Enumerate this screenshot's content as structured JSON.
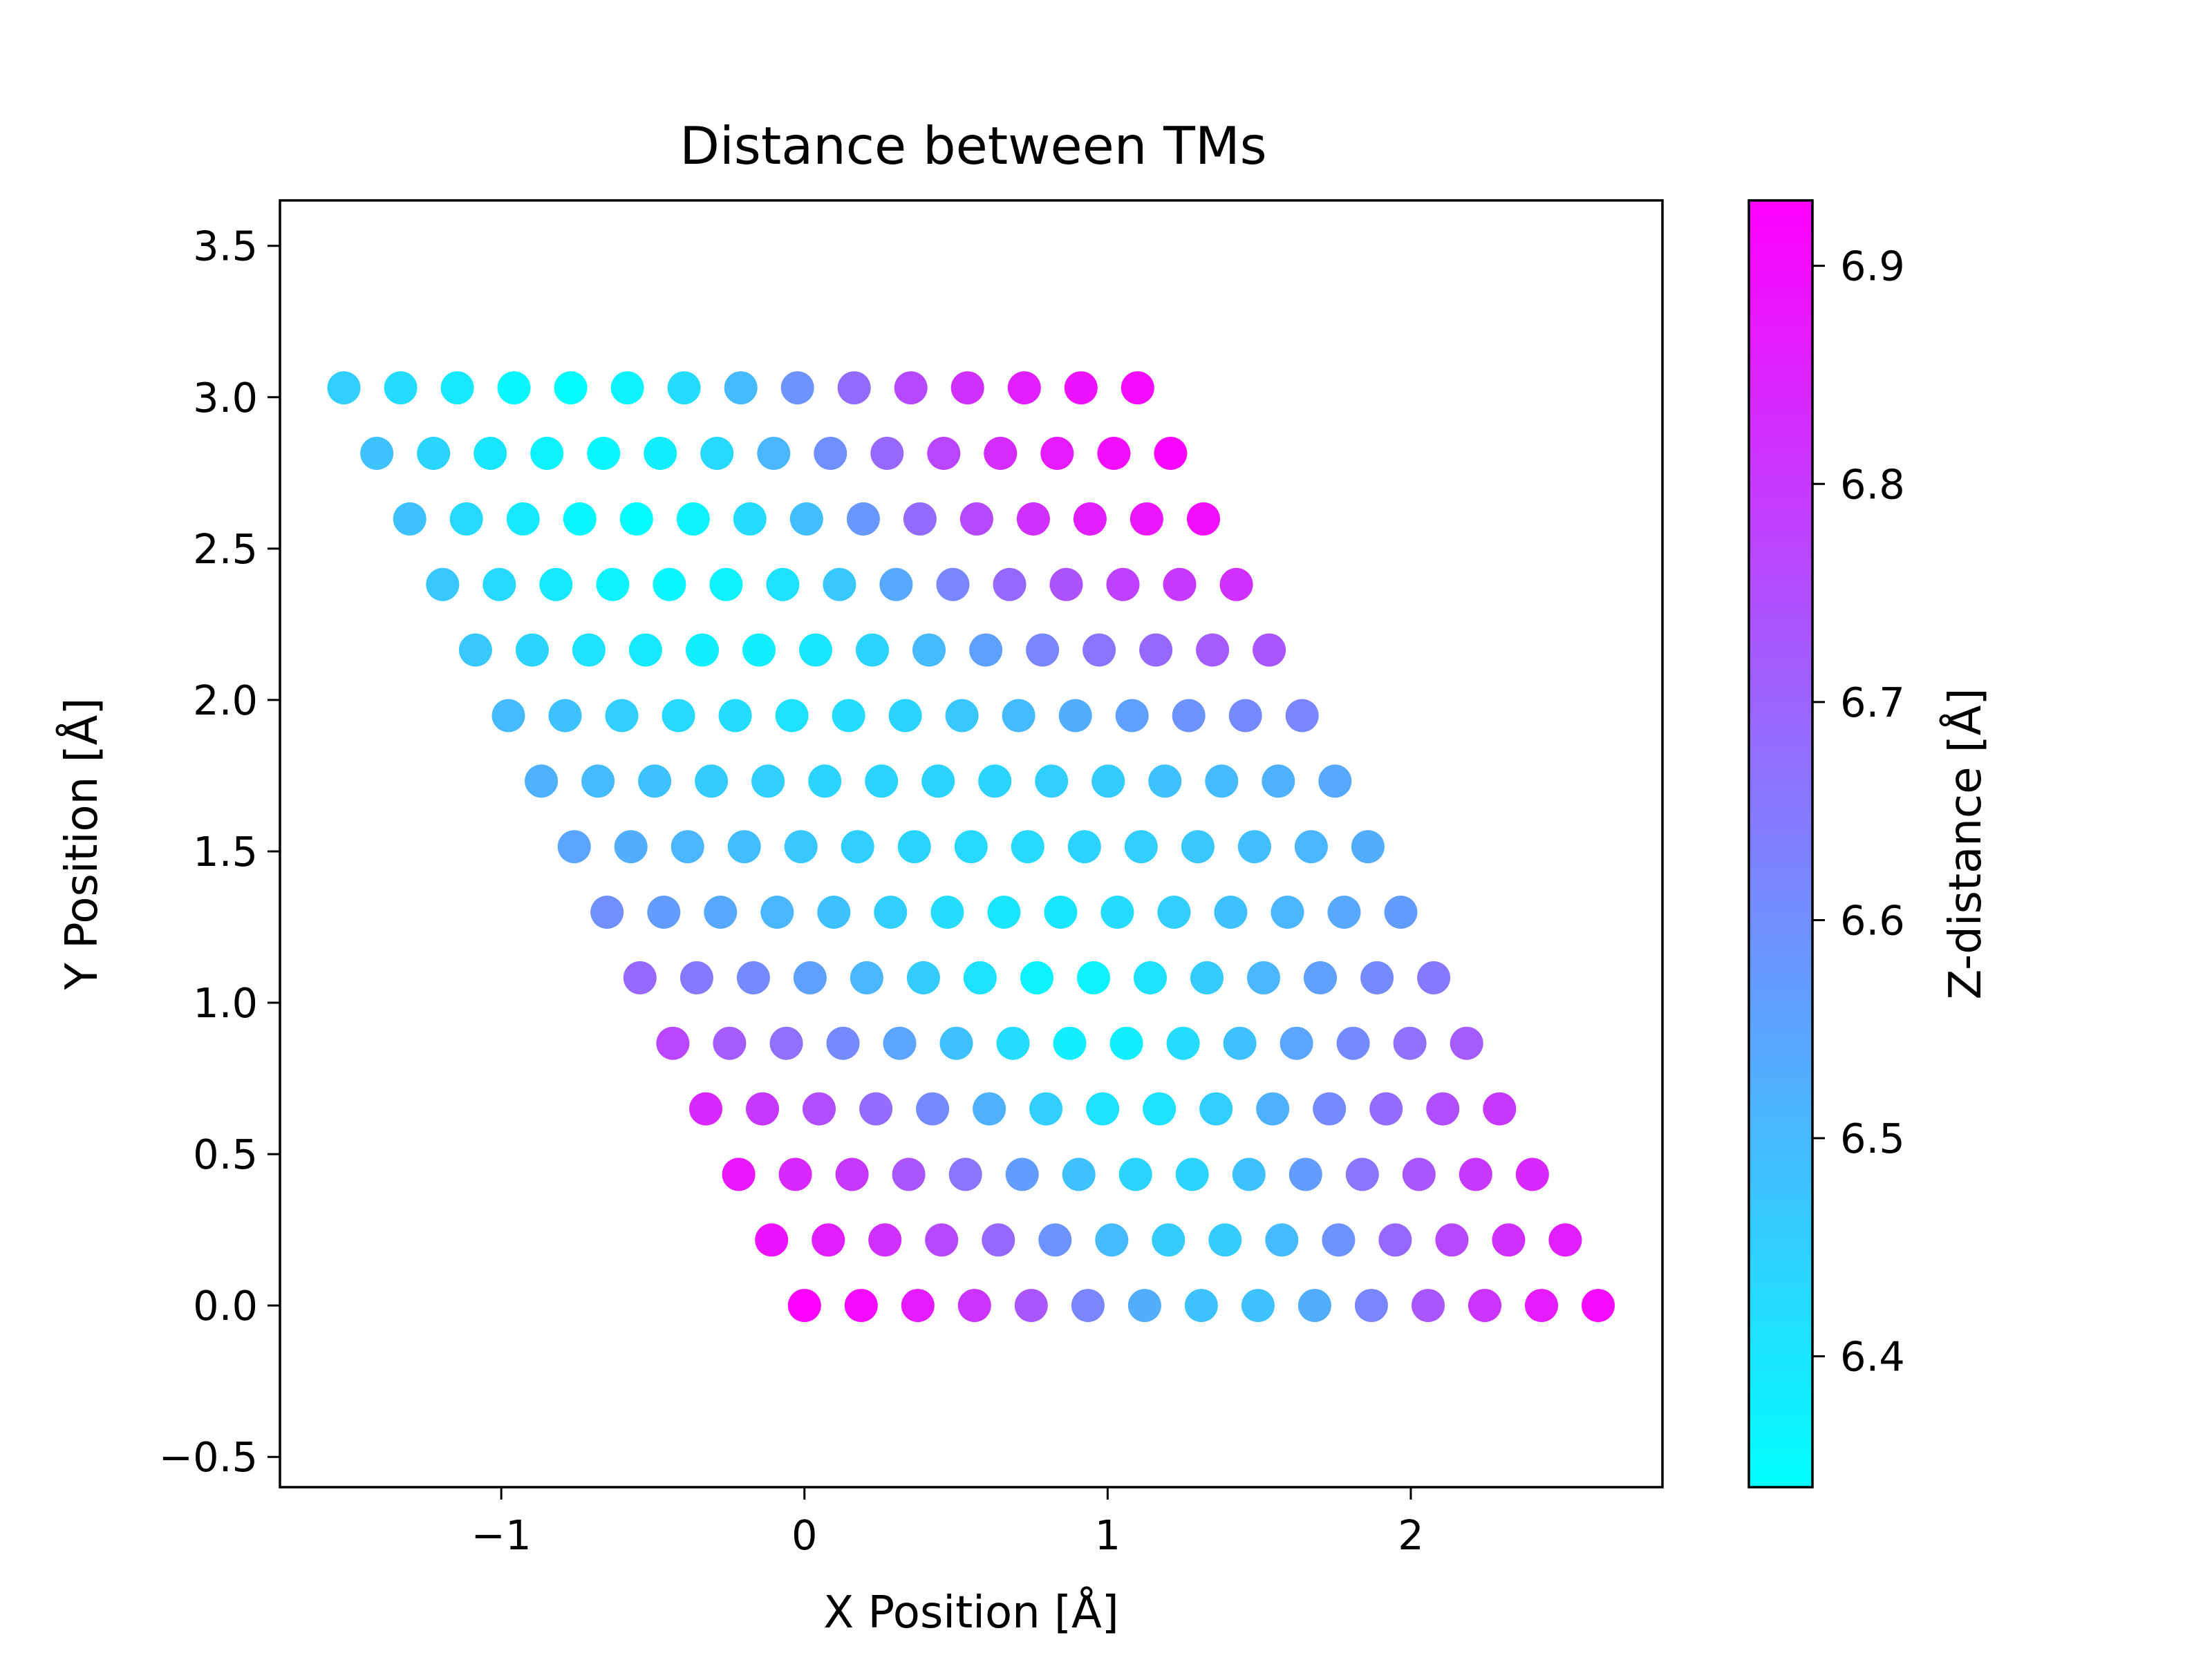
{
  "chart_data": {
    "type": "scatter",
    "title": "Distance between TMs",
    "xlabel": "X Position [Å]",
    "ylabel": "Y Position [Å]",
    "xlim": [
      -1.73,
      2.83
    ],
    "ylim": [
      -0.6,
      3.65
    ],
    "xticks": [
      -1,
      0,
      1,
      2
    ],
    "xtick_labels": [
      "−1",
      "0",
      "1",
      "2"
    ],
    "yticks": [
      -0.5,
      0.0,
      0.5,
      1.0,
      1.5,
      2.0,
      2.5,
      3.0,
      3.5
    ],
    "ytick_labels": [
      "−0.5",
      "0.0",
      "0.5",
      "1.0",
      "1.5",
      "2.0",
      "2.5",
      "3.0",
      "3.5"
    ],
    "grid": false,
    "colorbar": {
      "label": "Z-distance [Å]",
      "colormap": "cool",
      "range": [
        6.34,
        6.93
      ],
      "ticks": [
        6.4,
        6.5,
        6.6,
        6.7,
        6.8,
        6.9
      ],
      "tick_labels": [
        "6.4",
        "6.5",
        "6.6",
        "6.7",
        "6.8",
        "6.9"
      ],
      "color_low": "#00ffff",
      "color_high": "#ff00ff"
    },
    "lattice": {
      "rows": 15,
      "cols": 15,
      "a1": [
        0.187,
        0.0
      ],
      "a2": [
        -0.1085,
        0.2165
      ]
    },
    "z_values": [
      [
        6.93,
        6.91,
        6.87,
        6.81,
        6.73,
        6.62,
        6.53,
        6.48,
        6.48,
        6.53,
        6.62,
        6.73,
        6.81,
        6.87,
        6.91
      ],
      [
        6.89,
        6.86,
        6.82,
        6.76,
        6.69,
        6.59,
        6.5,
        6.46,
        6.46,
        6.5,
        6.59,
        6.69,
        6.76,
        6.82,
        6.86
      ],
      [
        6.88,
        6.84,
        6.8,
        6.73,
        6.66,
        6.57,
        6.48,
        6.44,
        6.44,
        6.48,
        6.57,
        6.66,
        6.73,
        6.8,
        6.84
      ],
      [
        6.84,
        6.8,
        6.75,
        6.68,
        6.61,
        6.52,
        6.45,
        6.41,
        6.41,
        6.45,
        6.52,
        6.61,
        6.68,
        6.75,
        6.8
      ],
      [
        6.77,
        6.72,
        6.67,
        6.61,
        6.55,
        6.48,
        6.42,
        6.38,
        6.38,
        6.42,
        6.48,
        6.55,
        6.61,
        6.67,
        6.72
      ],
      [
        6.69,
        6.65,
        6.61,
        6.56,
        6.51,
        6.46,
        6.41,
        6.37,
        6.37,
        6.41,
        6.46,
        6.51,
        6.56,
        6.61,
        6.65
      ],
      [
        6.6,
        6.57,
        6.54,
        6.51,
        6.48,
        6.45,
        6.42,
        6.4,
        6.4,
        6.42,
        6.45,
        6.48,
        6.51,
        6.54,
        6.57
      ],
      [
        6.55,
        6.53,
        6.51,
        6.49,
        6.47,
        6.45,
        6.44,
        6.43,
        6.43,
        6.44,
        6.45,
        6.47,
        6.49,
        6.51,
        6.53
      ],
      [
        6.52,
        6.5,
        6.48,
        6.46,
        6.45,
        6.44,
        6.44,
        6.44,
        6.44,
        6.45,
        6.46,
        6.48,
        6.5,
        6.52,
        6.54
      ],
      [
        6.5,
        6.48,
        6.45,
        6.43,
        6.42,
        6.41,
        6.42,
        6.44,
        6.47,
        6.5,
        6.53,
        6.56,
        6.59,
        6.61,
        6.62
      ],
      [
        6.47,
        6.44,
        6.41,
        6.39,
        6.38,
        6.38,
        6.4,
        6.44,
        6.5,
        6.56,
        6.62,
        6.66,
        6.69,
        6.72,
        6.73
      ],
      [
        6.47,
        6.43,
        6.39,
        6.37,
        6.36,
        6.37,
        6.41,
        6.47,
        6.54,
        6.62,
        6.69,
        6.74,
        6.78,
        6.8,
        6.82
      ],
      [
        6.48,
        6.43,
        6.39,
        6.36,
        6.35,
        6.37,
        6.42,
        6.49,
        6.58,
        6.68,
        6.76,
        6.82,
        6.86,
        6.88,
        6.9
      ],
      [
        6.48,
        6.44,
        6.4,
        6.37,
        6.36,
        6.38,
        6.43,
        6.51,
        6.6,
        6.69,
        6.77,
        6.83,
        6.87,
        6.9,
        6.92
      ],
      [
        6.45,
        6.42,
        6.39,
        6.36,
        6.35,
        6.37,
        6.42,
        6.5,
        6.59,
        6.68,
        6.76,
        6.82,
        6.86,
        6.89,
        6.91
      ]
    ]
  }
}
